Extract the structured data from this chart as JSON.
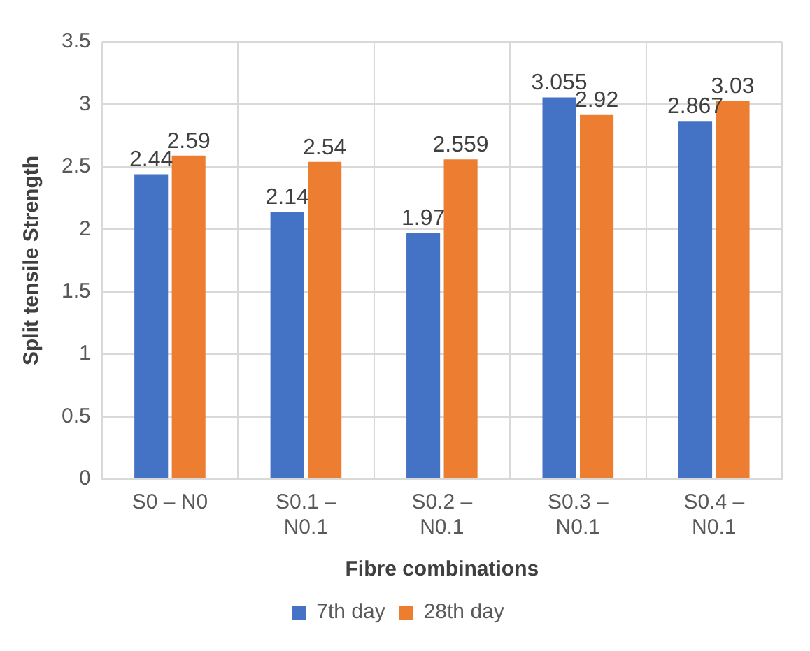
{
  "chart_data": {
    "type": "bar",
    "xlabel": "Fibre combinations",
    "ylabel": "Split tensile Strength",
    "categories": [
      "S0 – N0",
      "S0.1 – N0.1",
      "S0.2 – N0.1",
      "S0.3 – N0.1",
      "S0.4 – N0.1"
    ],
    "series": [
      {
        "name": "7th day",
        "color": "#4472c4",
        "values": [
          2.44,
          2.14,
          1.97,
          3.055,
          2.867
        ]
      },
      {
        "name": "28th day",
        "color": "#ed7d31",
        "values": [
          2.59,
          2.54,
          2.559,
          2.92,
          3.03
        ]
      }
    ],
    "ylim": [
      0,
      3.5
    ],
    "yticks": [
      0,
      0.5,
      1,
      1.5,
      2,
      2.5,
      3,
      3.5
    ],
    "grid": true,
    "legend": "bottom",
    "data_labels": true
  }
}
